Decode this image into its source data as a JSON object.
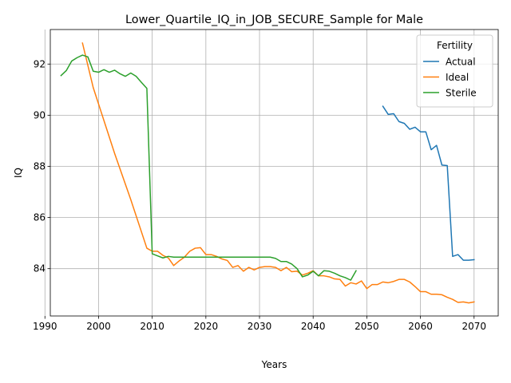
{
  "chart_data": {
    "type": "line",
    "title": "Lower_Quartile_IQ_in_JOB_SECURE_Sample for Male",
    "xlabel": "Years",
    "ylabel": "IQ",
    "xlim": [
      1991,
      2074.5
    ],
    "ylim": [
      82.15,
      93.35
    ],
    "xticks": [
      1990,
      2000,
      2010,
      2020,
      2030,
      2040,
      2050,
      2060,
      2070
    ],
    "yticks": [
      84,
      86,
      88,
      90,
      92
    ],
    "grid": true,
    "legend": {
      "title": "Fertility",
      "position": "top-right"
    },
    "series": [
      {
        "name": "Actual",
        "color": "#1f77b4",
        "x": [
          2053,
          2054,
          2055,
          2056,
          2057,
          2058,
          2059,
          2060,
          2061,
          2062,
          2063,
          2064,
          2065,
          2066,
          2067,
          2068,
          2069,
          2070
        ],
        "y": [
          90.35,
          90.03,
          90.06,
          89.75,
          89.68,
          89.45,
          89.53,
          89.35,
          89.35,
          88.65,
          88.82,
          88.05,
          88.03,
          84.48,
          84.55,
          84.33,
          84.33,
          84.35
        ]
      },
      {
        "name": "Ideal",
        "color": "#ff7f0e",
        "x": [
          1997,
          1999,
          2003,
          2006,
          2009,
          2010,
          2011,
          2012,
          2013,
          2014,
          2015,
          2016,
          2017,
          2018,
          2019,
          2020,
          2021,
          2022,
          2023,
          2024,
          2025,
          2026,
          2027,
          2028,
          2029,
          2030,
          2031,
          2032,
          2033,
          2034,
          2035,
          2036,
          2037,
          2038,
          2039,
          2040,
          2041,
          2042,
          2043,
          2044,
          2045,
          2046,
          2047,
          2048,
          2049,
          2050,
          2051,
          2052,
          2053,
          2054,
          2055,
          2056,
          2057,
          2058,
          2059,
          2060,
          2061,
          2062,
          2063,
          2064,
          2065,
          2066,
          2067,
          2068,
          2069,
          2070
        ],
        "y": [
          92.82,
          91.08,
          88.5,
          86.7,
          84.8,
          84.68,
          84.68,
          84.52,
          84.42,
          84.12,
          84.3,
          84.45,
          84.68,
          84.8,
          84.82,
          84.55,
          84.55,
          84.48,
          84.38,
          84.32,
          84.05,
          84.12,
          83.9,
          84.05,
          83.95,
          84.05,
          84.08,
          84.08,
          84.05,
          83.92,
          84.05,
          83.88,
          83.9,
          83.75,
          83.82,
          83.92,
          83.72,
          83.72,
          83.68,
          83.6,
          83.58,
          83.32,
          83.45,
          83.4,
          83.52,
          83.22,
          83.38,
          83.38,
          83.48,
          83.45,
          83.5,
          83.58,
          83.58,
          83.48,
          83.3,
          83.1,
          83.1,
          83.0,
          83.0,
          82.98,
          82.88,
          82.8,
          82.68,
          82.7,
          82.66,
          82.7
        ]
      },
      {
        "name": "Sterile",
        "color": "#2ca02c",
        "x": [
          1993,
          1994,
          1995,
          1996,
          1997,
          1998,
          1999,
          2000,
          2001,
          2002,
          2003,
          2004,
          2005,
          2006,
          2007,
          2008,
          2009,
          2010,
          2011,
          2012,
          2013,
          2014,
          2015,
          2016,
          2017,
          2018,
          2019,
          2020,
          2021,
          2022,
          2023,
          2024,
          2025,
          2026,
          2027,
          2028,
          2029,
          2030,
          2031,
          2032,
          2033,
          2034,
          2035,
          2036,
          2037,
          2038,
          2039,
          2040,
          2041,
          2042,
          2043,
          2044,
          2045,
          2046,
          2047,
          2048
        ],
        "y": [
          91.55,
          91.75,
          92.12,
          92.25,
          92.35,
          92.28,
          91.72,
          91.68,
          91.78,
          91.68,
          91.76,
          91.62,
          91.52,
          91.65,
          91.52,
          91.28,
          91.05,
          84.58,
          84.5,
          84.42,
          84.48,
          84.45,
          84.45,
          84.45,
          84.45,
          84.45,
          84.45,
          84.45,
          84.45,
          84.45,
          84.45,
          84.45,
          84.45,
          84.45,
          84.45,
          84.45,
          84.45,
          84.45,
          84.45,
          84.45,
          84.4,
          84.28,
          84.28,
          84.18,
          84.0,
          83.68,
          83.75,
          83.9,
          83.72,
          83.92,
          83.9,
          83.82,
          83.72,
          83.65,
          83.55,
          83.92
        ]
      }
    ]
  }
}
